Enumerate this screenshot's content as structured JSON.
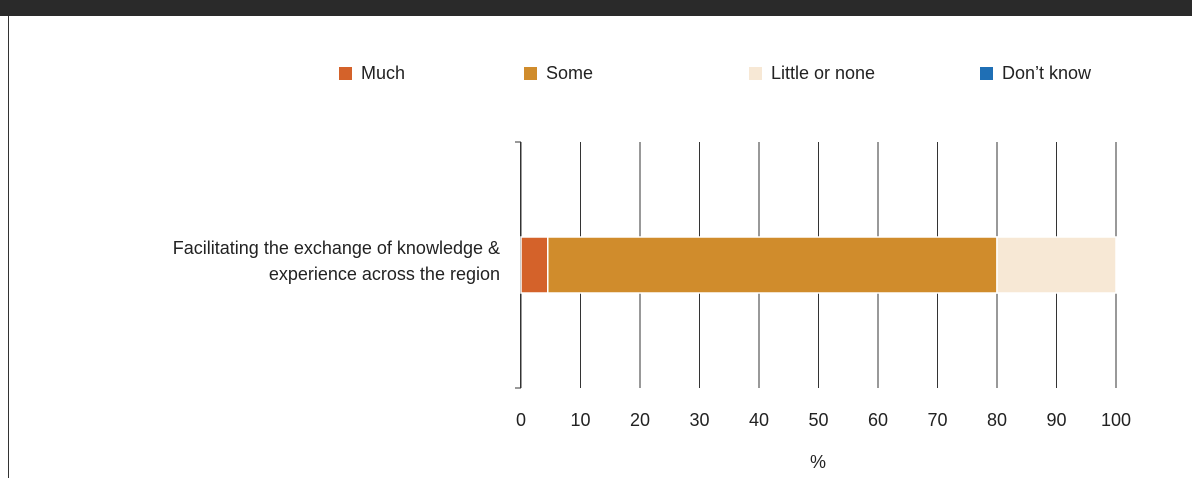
{
  "chart_data": {
    "type": "stacked-barh",
    "categories": [
      "Facilitating the exchange of knowledge & experience across the region"
    ],
    "series": [
      {
        "name": "Much",
        "color": "#d4622a",
        "values": [
          4.5
        ]
      },
      {
        "name": "Some",
        "color": "#d08c2c",
        "values": [
          75.5
        ]
      },
      {
        "name": "Little or none",
        "color": "#f7e8d5",
        "values": [
          20
        ]
      },
      {
        "name": "Don’t know",
        "color": "#1f6fb5",
        "values": [
          0
        ]
      }
    ],
    "xlabel": "%",
    "xlim": [
      0,
      100
    ],
    "xticks": [
      0,
      10,
      20,
      30,
      40,
      50,
      60,
      70,
      80,
      90,
      100
    ],
    "grid": true
  }
}
